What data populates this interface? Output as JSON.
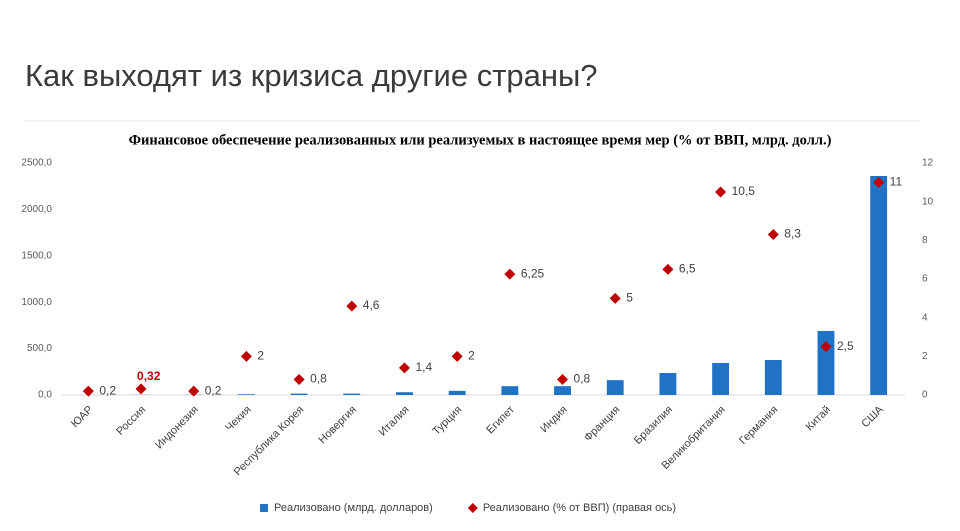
{
  "page_title": "Как выходят из кризиса другие страны?",
  "chart_data": {
    "type": "bar",
    "title": "Финансовое обеспечение реализованных или реализуемых в настоящее время мер (% от ВВП, млрд. долл.)",
    "categories": [
      "ЮАР",
      "Россия",
      "Индонезия",
      "Чехия",
      "Республика Корея",
      "Новергия",
      "Италия",
      "Турция",
      "Египет",
      "Индия",
      "Франция",
      "Бразилия",
      "Великобритания",
      "Германия",
      "Китай",
      "США"
    ],
    "series": [
      {
        "name": "Реализовано (млрд. долларов)",
        "color": "#1f72c6",
        "type": "bar",
        "values": [
          1,
          2,
          2,
          8,
          15,
          15,
          30,
          45,
          95,
          95,
          160,
          237,
          345,
          377,
          690,
          2360
        ]
      },
      {
        "name": "Реализовано (% от ВВП) (правая ось)",
        "color": "#c00000",
        "type": "scatter",
        "axis": "y2",
        "values": [
          0.2,
          0.32,
          0.2,
          2,
          0.8,
          4.6,
          1.4,
          2,
          6.25,
          0.8,
          5,
          6.5,
          10.5,
          8.3,
          2.5,
          11
        ],
        "value_labels": [
          "0,2",
          "0,32",
          "0,2",
          "2",
          "0,8",
          "4,6",
          "1,4",
          "2",
          "6,25",
          "0,8",
          "5",
          "6,5",
          "10,5",
          "8,3",
          "2,5",
          "11"
        ]
      }
    ],
    "ylim": [
      0,
      2500
    ],
    "yticks": [
      {
        "value": 0,
        "label": "0,0"
      },
      {
        "value": 500,
        "label": "500,0"
      },
      {
        "value": 1000,
        "label": "1000,0"
      },
      {
        "value": 1500,
        "label": "1500,0"
      },
      {
        "value": 2000,
        "label": "2000,0"
      },
      {
        "value": 2500,
        "label": "2500,0"
      }
    ],
    "y2lim": [
      0,
      12
    ],
    "y2ticks": [
      0,
      2,
      4,
      6,
      8,
      10,
      12
    ],
    "legend": "bottom"
  }
}
